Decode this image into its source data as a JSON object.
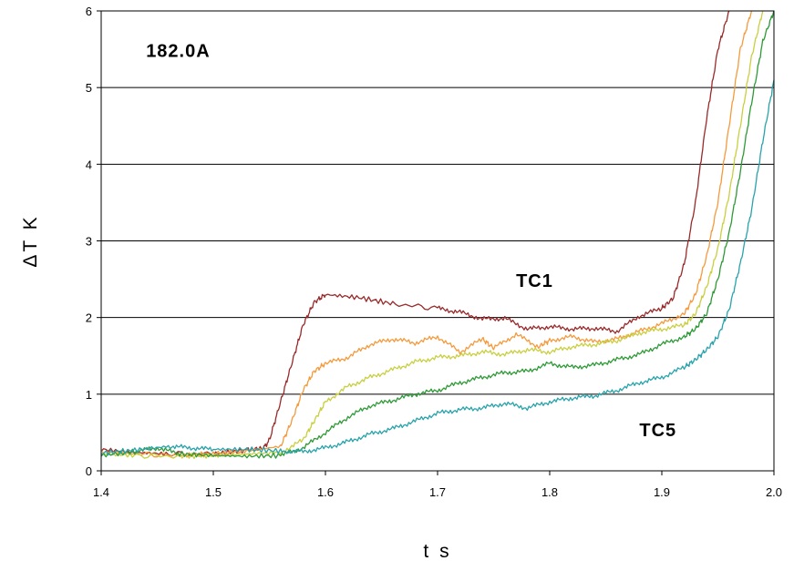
{
  "chart_data": {
    "type": "line",
    "title": "",
    "xlabel": "t s",
    "ylabel": "ΔT K",
    "xlim": [
      1.4,
      2.0
    ],
    "ylim": [
      0,
      6
    ],
    "x_ticks": [
      "1.4",
      "1.5",
      "1.6",
      "1.7",
      "1.8",
      "1.9",
      "2.0"
    ],
    "y_ticks": [
      "0",
      "1",
      "2",
      "3",
      "4",
      "5",
      "6"
    ],
    "grid": "horizontal",
    "legend": "none",
    "annotations": [
      {
        "text": "182.0A",
        "x": 1.44,
        "y": 5.4
      },
      {
        "text": "TC1",
        "x": 1.77,
        "y": 2.4
      },
      {
        "text": "TC5",
        "x": 1.88,
        "y": 0.45
      }
    ],
    "series": [
      {
        "color": "#9a2a2a",
        "points": [
          [
            1.4,
            0.28
          ],
          [
            1.43,
            0.24
          ],
          [
            1.46,
            0.22
          ],
          [
            1.5,
            0.22
          ],
          [
            1.53,
            0.27
          ],
          [
            1.545,
            0.3
          ],
          [
            1.55,
            0.4
          ],
          [
            1.56,
            0.9
          ],
          [
            1.57,
            1.4
          ],
          [
            1.58,
            1.9
          ],
          [
            1.59,
            2.2
          ],
          [
            1.6,
            2.3
          ],
          [
            1.63,
            2.26
          ],
          [
            1.66,
            2.18
          ],
          [
            1.7,
            2.12
          ],
          [
            1.72,
            2.07
          ],
          [
            1.74,
            1.98
          ],
          [
            1.76,
            1.99
          ],
          [
            1.78,
            1.85
          ],
          [
            1.8,
            1.88
          ],
          [
            1.82,
            1.85
          ],
          [
            1.84,
            1.86
          ],
          [
            1.86,
            1.82
          ],
          [
            1.88,
            2.02
          ],
          [
            1.9,
            2.12
          ],
          [
            1.91,
            2.25
          ],
          [
            1.92,
            2.7
          ],
          [
            1.93,
            3.5
          ],
          [
            1.94,
            4.6
          ],
          [
            1.95,
            5.5
          ],
          [
            1.96,
            6.0
          ]
        ]
      },
      {
        "color": "#f59a3c",
        "points": [
          [
            1.4,
            0.25
          ],
          [
            1.43,
            0.22
          ],
          [
            1.47,
            0.2
          ],
          [
            1.5,
            0.22
          ],
          [
            1.53,
            0.26
          ],
          [
            1.56,
            0.32
          ],
          [
            1.57,
            0.65
          ],
          [
            1.58,
            1.05
          ],
          [
            1.59,
            1.3
          ],
          [
            1.6,
            1.4
          ],
          [
            1.62,
            1.48
          ],
          [
            1.64,
            1.65
          ],
          [
            1.66,
            1.72
          ],
          [
            1.68,
            1.67
          ],
          [
            1.7,
            1.75
          ],
          [
            1.72,
            1.55
          ],
          [
            1.74,
            1.72
          ],
          [
            1.75,
            1.6
          ],
          [
            1.77,
            1.78
          ],
          [
            1.79,
            1.62
          ],
          [
            1.8,
            1.7
          ],
          [
            1.82,
            1.75
          ],
          [
            1.84,
            1.68
          ],
          [
            1.86,
            1.72
          ],
          [
            1.88,
            1.82
          ],
          [
            1.9,
            1.92
          ],
          [
            1.92,
            2.05
          ],
          [
            1.93,
            2.3
          ],
          [
            1.94,
            2.8
          ],
          [
            1.95,
            3.5
          ],
          [
            1.96,
            4.5
          ],
          [
            1.97,
            5.5
          ],
          [
            1.98,
            6.0
          ]
        ]
      },
      {
        "color": "#c9cf3f",
        "points": [
          [
            1.4,
            0.22
          ],
          [
            1.43,
            0.2
          ],
          [
            1.47,
            0.19
          ],
          [
            1.5,
            0.2
          ],
          [
            1.53,
            0.22
          ],
          [
            1.56,
            0.24
          ],
          [
            1.58,
            0.4
          ],
          [
            1.59,
            0.65
          ],
          [
            1.6,
            0.9
          ],
          [
            1.62,
            1.1
          ],
          [
            1.64,
            1.22
          ],
          [
            1.66,
            1.32
          ],
          [
            1.68,
            1.42
          ],
          [
            1.7,
            1.48
          ],
          [
            1.72,
            1.5
          ],
          [
            1.74,
            1.55
          ],
          [
            1.76,
            1.52
          ],
          [
            1.78,
            1.58
          ],
          [
            1.8,
            1.55
          ],
          [
            1.82,
            1.62
          ],
          [
            1.84,
            1.65
          ],
          [
            1.86,
            1.7
          ],
          [
            1.88,
            1.8
          ],
          [
            1.9,
            1.85
          ],
          [
            1.92,
            1.9
          ],
          [
            1.93,
            2.05
          ],
          [
            1.94,
            2.4
          ],
          [
            1.95,
            2.9
          ],
          [
            1.96,
            3.6
          ],
          [
            1.97,
            4.5
          ],
          [
            1.98,
            5.4
          ],
          [
            1.99,
            6.0
          ]
        ]
      },
      {
        "color": "#2e9a36",
        "points": [
          [
            1.4,
            0.2
          ],
          [
            1.43,
            0.25
          ],
          [
            1.45,
            0.3
          ],
          [
            1.47,
            0.22
          ],
          [
            1.5,
            0.2
          ],
          [
            1.53,
            0.19
          ],
          [
            1.56,
            0.2
          ],
          [
            1.58,
            0.3
          ],
          [
            1.6,
            0.5
          ],
          [
            1.62,
            0.7
          ],
          [
            1.64,
            0.85
          ],
          [
            1.66,
            0.92
          ],
          [
            1.68,
            1.0
          ],
          [
            1.7,
            1.05
          ],
          [
            1.72,
            1.15
          ],
          [
            1.74,
            1.22
          ],
          [
            1.76,
            1.28
          ],
          [
            1.78,
            1.3
          ],
          [
            1.8,
            1.4
          ],
          [
            1.82,
            1.35
          ],
          [
            1.84,
            1.38
          ],
          [
            1.86,
            1.45
          ],
          [
            1.88,
            1.52
          ],
          [
            1.9,
            1.65
          ],
          [
            1.92,
            1.75
          ],
          [
            1.93,
            1.85
          ],
          [
            1.94,
            2.05
          ],
          [
            1.95,
            2.5
          ],
          [
            1.96,
            3.1
          ],
          [
            1.97,
            3.9
          ],
          [
            1.98,
            4.8
          ],
          [
            1.99,
            5.6
          ],
          [
            2.0,
            6.0
          ]
        ]
      },
      {
        "color": "#27a3ab",
        "points": [
          [
            1.4,
            0.23
          ],
          [
            1.43,
            0.27
          ],
          [
            1.46,
            0.32
          ],
          [
            1.48,
            0.3
          ],
          [
            1.5,
            0.28
          ],
          [
            1.53,
            0.28
          ],
          [
            1.56,
            0.26
          ],
          [
            1.58,
            0.25
          ],
          [
            1.6,
            0.3
          ],
          [
            1.62,
            0.38
          ],
          [
            1.64,
            0.48
          ],
          [
            1.66,
            0.55
          ],
          [
            1.68,
            0.65
          ],
          [
            1.7,
            0.75
          ],
          [
            1.72,
            0.8
          ],
          [
            1.74,
            0.82
          ],
          [
            1.76,
            0.88
          ],
          [
            1.78,
            0.82
          ],
          [
            1.8,
            0.9
          ],
          [
            1.82,
            0.95
          ],
          [
            1.84,
            0.98
          ],
          [
            1.86,
            1.05
          ],
          [
            1.88,
            1.15
          ],
          [
            1.9,
            1.22
          ],
          [
            1.92,
            1.35
          ],
          [
            1.93,
            1.45
          ],
          [
            1.94,
            1.58
          ],
          [
            1.95,
            1.75
          ],
          [
            1.96,
            2.1
          ],
          [
            1.97,
            2.7
          ],
          [
            1.98,
            3.4
          ],
          [
            1.99,
            4.3
          ],
          [
            2.0,
            5.1
          ]
        ]
      }
    ]
  }
}
